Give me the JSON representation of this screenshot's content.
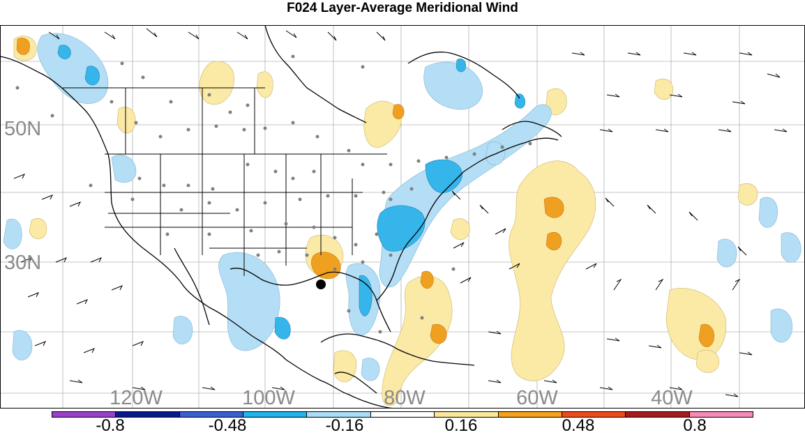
{
  "title": "F024 Layer-Average Meridional Wind",
  "lat_labels": [
    "50N",
    "30N"
  ],
  "lon_labels": [
    "120W",
    "100W",
    "80W",
    "60W",
    "40W"
  ],
  "colorbar": {
    "labels": [
      "-0.8",
      "-0.48",
      "-0.16",
      "0.16",
      "0.48",
      "0.8"
    ],
    "colors": [
      "#9b3fc8",
      "#0a1a8c",
      "#3a5fd0",
      "#22b4ec",
      "#a8dcf7",
      "#ffffff",
      "#fbe79a",
      "#f4a21a",
      "#ee4a1c",
      "#a51c1c",
      "#f58ab8"
    ]
  },
  "fill_colors": {
    "light_blue": "#b4def5",
    "mid_blue": "#35b5ea",
    "light_yellow": "#fbe9a6",
    "orange": "#f0a020"
  },
  "marker_color": "#000000",
  "obs_dot_color": "#808080"
}
